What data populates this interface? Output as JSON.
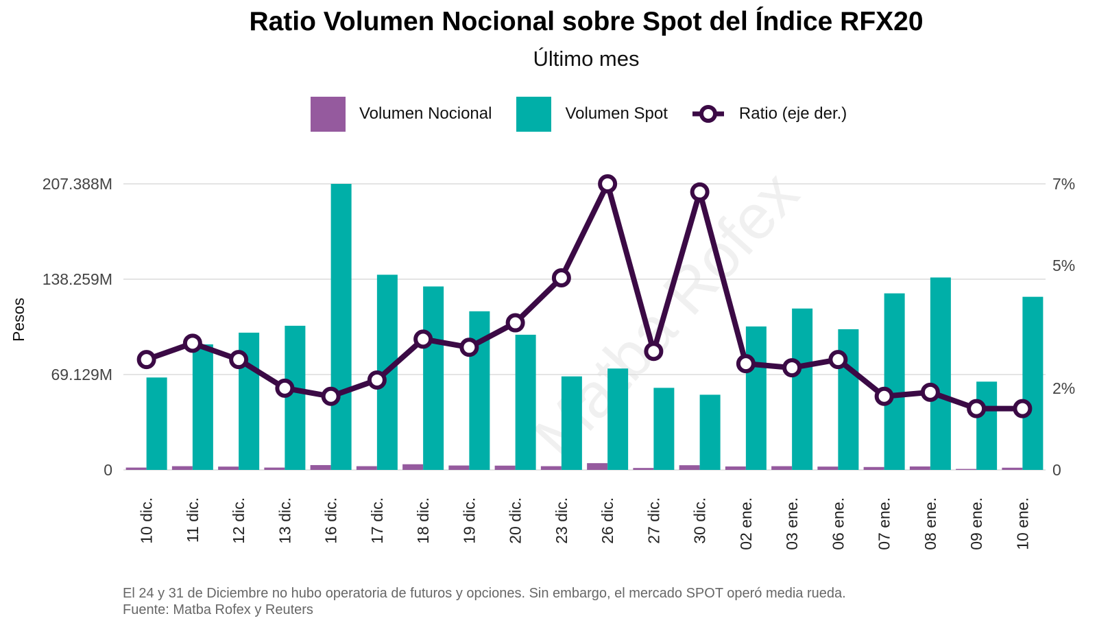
{
  "header": {
    "title": "Ratio Volumen Nocional sobre Spot del Índice RFX20",
    "subtitle": "Último mes"
  },
  "legend": {
    "items": [
      {
        "label": "Volumen Nocional",
        "color": "#955a9e",
        "kind": "bar"
      },
      {
        "label": "Volumen Spot",
        "color": "#00afa8",
        "kind": "bar"
      },
      {
        "label": "Ratio (eje der.)",
        "color": "#3b0a45",
        "kind": "line"
      }
    ]
  },
  "watermark": "Matba Rofex",
  "footer": {
    "note": "El 24 y 31 de Diciembre no hubo operatoria de futuros y opciones. Sin embargo, el mercado SPOT operó media rueda.",
    "source": "Fuente: Matba Rofex y Reuters"
  },
  "chart_data": {
    "type": "bar",
    "categories": [
      "10 dic.",
      "11 dic.",
      "12 dic.",
      "13 dic.",
      "16 dic.",
      "17 dic.",
      "18 dic.",
      "19 dic.",
      "20 dic.",
      "23 dic.",
      "26 dic.",
      "27 dic.",
      "30 dic.",
      "02 ene.",
      "03 ene.",
      "06 ene.",
      "07 ene.",
      "08 ene.",
      "09 ene.",
      "10 ene."
    ],
    "ylabel": "Pesos",
    "y_left": {
      "ticks": [
        0,
        69129000,
        138259000,
        207388000
      ],
      "tick_labels": [
        "0",
        "69.129M",
        "138.259M",
        "207.388M"
      ],
      "ylim": [
        0,
        207388000
      ]
    },
    "y_right": {
      "ticks": [
        0,
        2,
        5,
        7
      ],
      "tick_labels": [
        "0",
        "2%",
        "5%",
        "7%"
      ],
      "ylim": [
        0,
        7
      ]
    },
    "grid": true,
    "legend_position": "top",
    "series": [
      {
        "name": "Volumen Nocional",
        "type": "bar",
        "axis": "left",
        "color": "#955a9e",
        "values": [
          1700000,
          2700000,
          2400000,
          1700000,
          3500000,
          2700000,
          4100000,
          3200000,
          3100000,
          2700000,
          4900000,
          1400000,
          3400000,
          2500000,
          2700000,
          2400000,
          2100000,
          2500000,
          700000,
          1600000
        ]
      },
      {
        "name": "Volumen Spot",
        "type": "bar",
        "axis": "left",
        "color": "#00afa8",
        "values": [
          67000000,
          91000000,
          99500000,
          104500000,
          207388000,
          141500000,
          133000000,
          115000000,
          98000000,
          67800000,
          73500000,
          59500000,
          54500000,
          104000000,
          117000000,
          102000000,
          128000000,
          139500000,
          64000000,
          125500000
        ]
      },
      {
        "name": "Ratio (eje der.)",
        "type": "line",
        "axis": "right",
        "color": "#3b0a45",
        "values": [
          2.7,
          3.1,
          2.7,
          2.0,
          1.8,
          2.2,
          3.2,
          3.0,
          3.6,
          4.7,
          7.0,
          2.9,
          6.8,
          2.6,
          2.5,
          2.7,
          1.8,
          1.9,
          1.5,
          1.5
        ]
      }
    ]
  }
}
